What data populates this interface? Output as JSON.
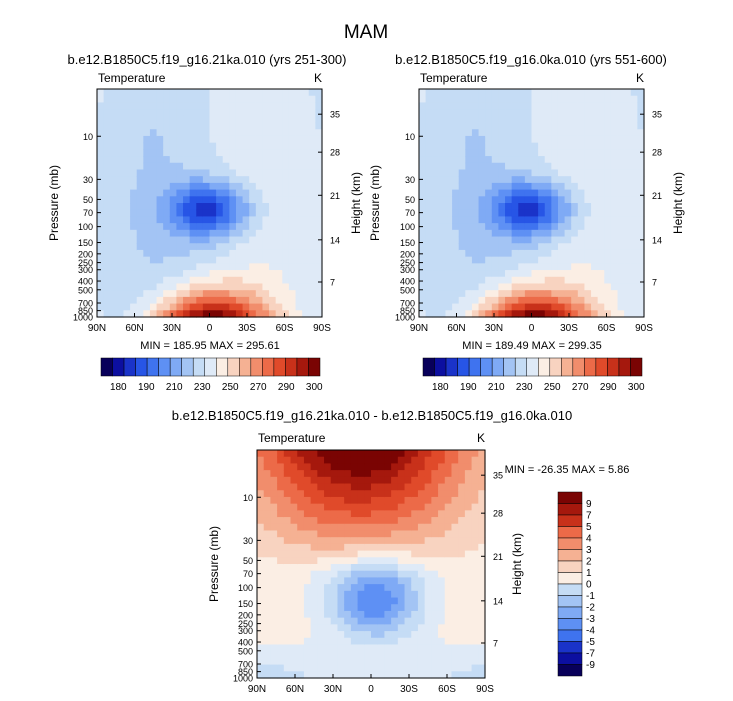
{
  "figure": {
    "title": "MAM"
  },
  "colors": {
    "abs": [
      "#08005a",
      "#0c0fa0",
      "#1a33c9",
      "#2755e6",
      "#3f73ef",
      "#5e90f4",
      "#7faaf5",
      "#a3c4f4",
      "#c5dcf5",
      "#dfeaf7",
      "#fbeee4",
      "#f8d3c0",
      "#f5b193",
      "#f18d6c",
      "#ec6a48",
      "#e04a2a",
      "#c8311a",
      "#a5180d",
      "#7a0403"
    ],
    "diff": [
      "#08005a",
      "#0c0fa0",
      "#1a33c9",
      "#2755e6",
      "#3f73ef",
      "#5e90f4",
      "#7faaf5",
      "#a3c4f4",
      "#c5dcf5",
      "#dfeaf7",
      "#fbeee4",
      "#f8d3c0",
      "#f5b193",
      "#f18d6c",
      "#ec6a48",
      "#e04a2a",
      "#c8311a",
      "#a5180d",
      "#7a0403"
    ]
  },
  "chart_data": [
    {
      "type": "heatmap",
      "title": "b.e12.B1850C5.f19_g16.21ka.010 (yrs 251-300)",
      "left_label": "Temperature",
      "right_label": "K",
      "xlabel": "",
      "ylabel": "Pressure (mb)",
      "ylabel_right": "Height (km)",
      "x_ticks": [
        "90N",
        "60N",
        "30N",
        "0",
        "30S",
        "60S",
        "90S"
      ],
      "y_ticks": [
        "10",
        "30",
        "50",
        "70",
        "100",
        "150",
        "200",
        "250",
        "300",
        "400",
        "500",
        "700",
        "850",
        "1000"
      ],
      "y_right_ticks": [
        "35",
        "28",
        "21",
        "14",
        "7"
      ],
      "min_max": "MIN = 185.95  MAX = 295.61",
      "colorbar_labels": [
        "180",
        "190",
        "210",
        "230",
        "250",
        "270",
        "290",
        "300"
      ],
      "ylim_mb": [
        3,
        1000
      ]
    },
    {
      "type": "heatmap",
      "title": "b.e12.B1850C5.f19_g16.0ka.010 (yrs 551-600)",
      "left_label": "Temperature",
      "right_label": "K",
      "xlabel": "",
      "ylabel": "Pressure (mb)",
      "ylabel_right": "Height (km)",
      "x_ticks": [
        "90N",
        "60N",
        "30N",
        "0",
        "30S",
        "60S",
        "90S"
      ],
      "y_ticks": [
        "10",
        "30",
        "50",
        "70",
        "100",
        "150",
        "200",
        "250",
        "300",
        "400",
        "500",
        "700",
        "850",
        "1000"
      ],
      "y_right_ticks": [
        "35",
        "28",
        "21",
        "14",
        "7"
      ],
      "min_max": "MIN = 189.49  MAX = 299.35",
      "colorbar_labels": [
        "180",
        "190",
        "210",
        "230",
        "250",
        "270",
        "290",
        "300"
      ],
      "ylim_mb": [
        3,
        1000
      ]
    },
    {
      "type": "heatmap",
      "title": "b.e12.B1850C5.f19_g16.21ka.010 - b.e12.B1850C5.f19_g16.0ka.010",
      "left_label": "Temperature",
      "right_label": "K",
      "xlabel": "",
      "ylabel": "Pressure (mb)",
      "ylabel_right": "Height (km)",
      "x_ticks": [
        "90N",
        "60N",
        "30N",
        "0",
        "30S",
        "60S",
        "90S"
      ],
      "y_ticks": [
        "10",
        "30",
        "50",
        "70",
        "100",
        "150",
        "200",
        "250",
        "300",
        "400",
        "500",
        "700",
        "850",
        "1000"
      ],
      "y_right_ticks": [
        "35",
        "28",
        "21",
        "14",
        "7"
      ],
      "min_max": "MIN = -26.35  MAX =  5.86",
      "colorbar_labels": [
        "9",
        "7",
        "5",
        "4",
        "3",
        "2",
        "1",
        "0",
        "-1",
        "-2",
        "-3",
        "-4",
        "-5",
        "-7",
        "-9"
      ],
      "ylim_mb": [
        3,
        1000
      ]
    }
  ]
}
